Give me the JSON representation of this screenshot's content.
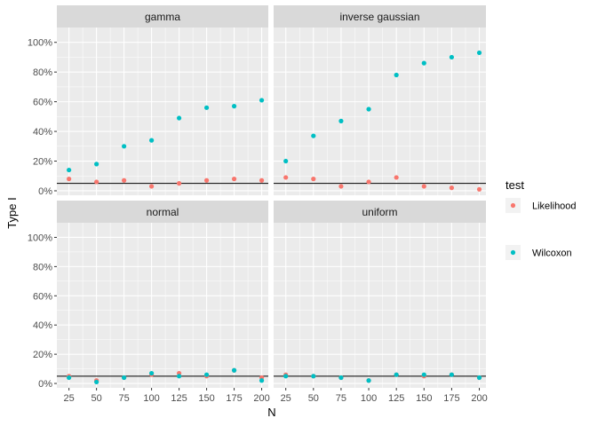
{
  "chart_data": {
    "type": "scatter",
    "xlabel": "N",
    "ylabel": "Type I",
    "x_ticks": [
      25,
      50,
      75,
      100,
      125,
      150,
      175,
      200
    ],
    "y_ticks": [
      0,
      0.2,
      0.4,
      0.6,
      0.8,
      1.0
    ],
    "y_tick_labels": [
      "0%",
      "20%",
      "40%",
      "60%",
      "80%",
      "100%"
    ],
    "xlim": [
      14,
      206
    ],
    "ylim": [
      -0.03,
      1.1
    ],
    "reference_line": 0.05,
    "grid": true,
    "legend": {
      "title": "test",
      "position": "right",
      "entries": [
        {
          "label": "Likelihood",
          "color": "#F8766D"
        },
        {
          "label": "Wilcoxon",
          "color": "#00BFC4"
        }
      ]
    },
    "x": [
      25,
      50,
      75,
      100,
      125,
      150,
      175,
      200
    ],
    "panels": [
      {
        "name": "gamma",
        "series": [
          {
            "name": "Likelihood",
            "values": [
              0.08,
              0.06,
              0.07,
              0.03,
              0.05,
              0.07,
              0.08,
              0.07
            ]
          },
          {
            "name": "Wilcoxon",
            "values": [
              0.14,
              0.18,
              0.3,
              0.34,
              0.49,
              0.56,
              0.57,
              0.61
            ]
          }
        ]
      },
      {
        "name": "inverse gaussian",
        "series": [
          {
            "name": "Likelihood",
            "values": [
              0.09,
              0.08,
              0.03,
              0.06,
              0.09,
              0.03,
              0.02,
              0.01
            ]
          },
          {
            "name": "Wilcoxon",
            "values": [
              0.2,
              0.37,
              0.47,
              0.55,
              0.78,
              0.86,
              0.9,
              0.93
            ]
          }
        ]
      },
      {
        "name": "normal",
        "series": [
          {
            "name": "Likelihood",
            "values": [
              0.05,
              0.02,
              0.04,
              0.06,
              0.07,
              0.05,
              0.09,
              0.04
            ]
          },
          {
            "name": "Wilcoxon",
            "values": [
              0.04,
              0.01,
              0.04,
              0.07,
              0.05,
              0.06,
              0.09,
              0.02
            ]
          }
        ]
      },
      {
        "name": "uniform",
        "series": [
          {
            "name": "Likelihood",
            "values": [
              0.06,
              0.05,
              0.04,
              0.02,
              0.06,
              0.05,
              0.06,
              0.04
            ]
          },
          {
            "name": "Wilcoxon",
            "values": [
              0.05,
              0.05,
              0.04,
              0.02,
              0.06,
              0.06,
              0.06,
              0.04
            ]
          }
        ]
      }
    ]
  }
}
